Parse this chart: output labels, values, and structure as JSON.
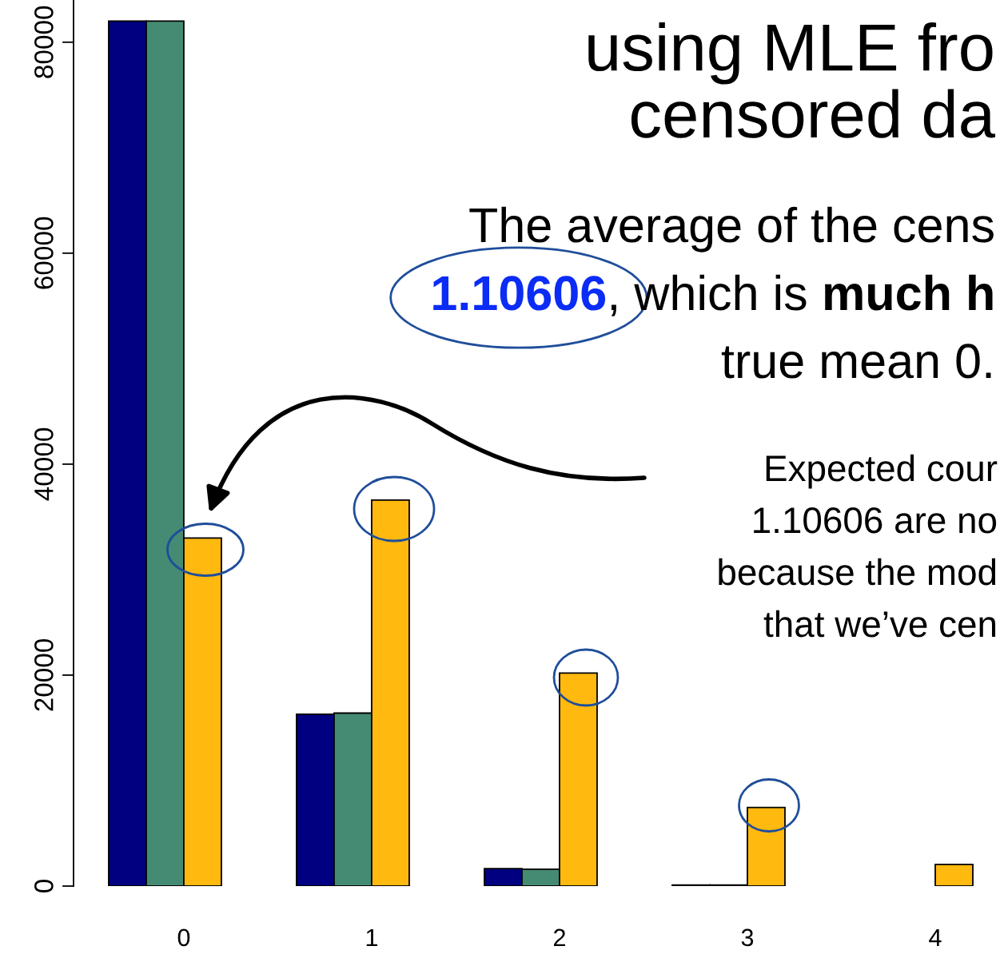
{
  "chart_data": {
    "type": "bar",
    "title": "using MLE fro\ncensored da",
    "categories": [
      "0",
      "1",
      "2",
      "3",
      "4"
    ],
    "series": [
      {
        "color": "#000080",
        "values": [
          82000,
          16300,
          1650,
          100,
          null
        ]
      },
      {
        "color": "#458b74",
        "values": [
          82000,
          16400,
          1600,
          100,
          null
        ]
      },
      {
        "color": "#ffb90f",
        "values": [
          33000,
          36600,
          20200,
          7450,
          2050
        ]
      }
    ],
    "ylim": [
      0,
      84000
    ],
    "yticks": [
      0,
      20000,
      40000,
      60000,
      80000
    ],
    "grid": false,
    "annotations": [
      "The average of the cens",
      "1.10606",
      ", which is ",
      "much h",
      "true mean 0.",
      "Expected cour",
      "1.10606 are no",
      "because the mod",
      "that we’ve cen"
    ]
  }
}
